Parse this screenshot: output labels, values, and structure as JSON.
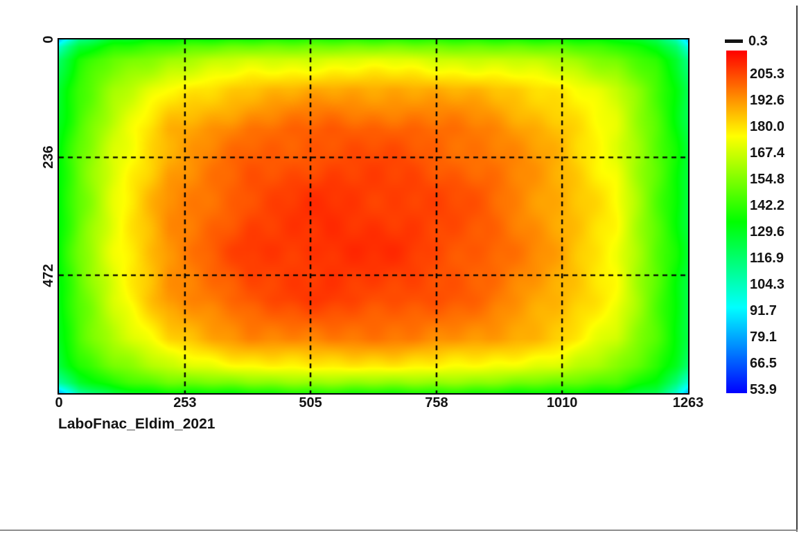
{
  "caption": "LaboFnac_Eldim_2021",
  "colors": {
    "background": "#ffffff",
    "plot_border": "#000000",
    "grid": "#000000",
    "text": "#141414",
    "window_edge_right": "#3c3c3c",
    "window_edge_bottom": "#8c8c8c"
  },
  "chart_data": {
    "type": "heatmap",
    "title": "",
    "xlabel": "",
    "ylabel": "",
    "x_tick_labels": [
      "0",
      "253",
      "505",
      "758",
      "1010",
      "1263"
    ],
    "y_tick_labels": [
      "0",
      "236",
      "472"
    ],
    "x_range": [
      0,
      1263
    ],
    "y_range": [
      0,
      708
    ],
    "grid": "dashed",
    "grid_lines_x": [
      253,
      505,
      758,
      1010
    ],
    "grid_lines_y": [
      236,
      472
    ],
    "colormap": "rainbow-hsv (red=high, blue=low)",
    "colorbar": {
      "top_tick_label": "0.3",
      "labels": [
        "205.3",
        "192.6",
        "180.0",
        "167.4",
        "154.8",
        "142.2",
        "129.6",
        "116.9",
        "104.3",
        "91.7",
        "79.1",
        "66.5",
        "53.9"
      ],
      "gradient_stops": [
        "#ff0000",
        "#ff8000",
        "#ffff00",
        "#80ff00",
        "#00ff00",
        "#00ff80",
        "#00ffff",
        "#0080ff",
        "#0000ff"
      ],
      "vmin": 49,
      "vmax": 218
    },
    "values_note": "luminance samples (cd/m2) on non-uniform grid; grid_x horizontal positions, grid_y vertical positions (top to bottom)",
    "grid_x": [
      0,
      40,
      110,
      220,
      380,
      540,
      700,
      860,
      1010,
      1120,
      1200,
      1240,
      1263
    ],
    "grid_y": [
      0,
      14,
      40,
      100,
      180,
      300,
      420,
      520,
      600,
      655,
      688,
      708
    ],
    "values": [
      [
        80,
        112,
        128,
        134,
        138,
        140,
        140,
        138,
        136,
        132,
        122,
        104,
        82
      ],
      [
        100,
        124,
        138,
        146,
        151,
        153,
        153,
        151,
        148,
        142,
        130,
        114,
        96
      ],
      [
        116,
        136,
        150,
        160,
        167,
        170,
        170,
        167,
        162,
        153,
        139,
        125,
        110
      ],
      [
        126,
        143,
        160,
        176,
        186,
        190,
        190,
        187,
        179,
        167,
        146,
        132,
        120
      ],
      [
        130,
        147,
        167,
        188,
        199,
        203,
        202,
        197,
        186,
        171,
        148,
        134,
        122
      ],
      [
        133,
        150,
        172,
        193,
        205,
        209,
        208,
        202,
        189,
        175,
        148,
        135,
        124
      ],
      [
        133,
        151,
        173,
        195,
        208,
        211,
        209,
        203,
        190,
        176,
        148,
        135,
        124
      ],
      [
        132,
        149,
        170,
        192,
        205,
        208,
        206,
        200,
        188,
        174,
        148,
        134,
        123
      ],
      [
        129,
        145,
        163,
        183,
        195,
        198,
        197,
        193,
        183,
        168,
        146,
        132,
        121
      ],
      [
        123,
        138,
        152,
        167,
        176,
        179,
        178,
        175,
        168,
        157,
        141,
        127,
        114
      ],
      [
        108,
        127,
        140,
        150,
        156,
        158,
        158,
        156,
        151,
        144,
        131,
        116,
        99
      ],
      [
        80,
        110,
        126,
        133,
        137,
        139,
        139,
        137,
        135,
        130,
        121,
        103,
        82
      ]
    ]
  }
}
